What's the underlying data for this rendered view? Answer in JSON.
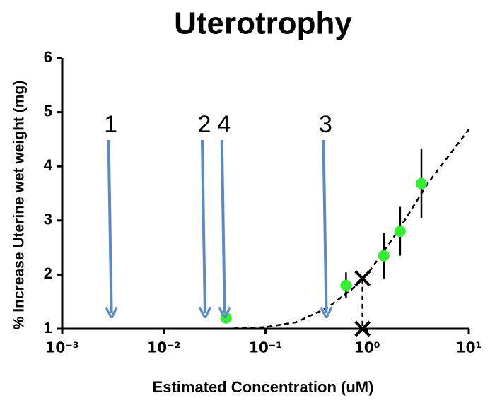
{
  "chart_data": {
    "type": "scatter",
    "title": "Uterotrophy",
    "x_label": "Estimated Concentration (uM)",
    "y_label": "% Increase Uterine wet weight (mg)",
    "xscale": "log",
    "xlim": [
      0.001,
      10
    ],
    "xticks": [
      {
        "value": 0.001,
        "label": "10⁻³"
      },
      {
        "value": 0.01,
        "label": "10⁻²"
      },
      {
        "value": 0.1,
        "label": "10⁻¹"
      },
      {
        "value": 1,
        "label": "10⁰"
      },
      {
        "value": 10,
        "label": "10¹"
      }
    ],
    "ylim": [
      1,
      6
    ],
    "yticks": [
      1,
      2,
      3,
      4,
      5,
      6
    ],
    "series": [
      {
        "type": "line",
        "style": "dashed",
        "color": "#000000",
        "x": [
          0.04,
          0.1,
          0.2,
          0.4,
          0.7,
          1,
          2,
          4,
          10
        ],
        "values": [
          1.0,
          1.03,
          1.12,
          1.38,
          1.72,
          2.0,
          2.8,
          3.7,
          4.68
        ]
      },
      {
        "type": "line",
        "style": "dashed",
        "marker": "x",
        "color": "#000000",
        "x": [
          0.9,
          0.9
        ],
        "values": [
          1.93,
          1.0
        ]
      },
      {
        "type": "scatter",
        "color": "#33ee33",
        "x": [
          0.041,
          0.62,
          1.46,
          2.11,
          3.42
        ],
        "values": [
          1.2,
          1.8,
          2.35,
          2.8,
          3.68
        ],
        "errors": [
          null,
          0.24,
          0.42,
          0.45,
          0.64
        ]
      }
    ],
    "annotations": [
      {
        "text": "1",
        "x": 0.003,
        "color": "#5b8ac6"
      },
      {
        "text": "2",
        "x": 0.025,
        "color": "#5b8ac6"
      },
      {
        "text": "4",
        "x": 0.039,
        "color": "#5b8ac6"
      },
      {
        "text": "3",
        "x": 0.39,
        "color": "#5b8ac6"
      }
    ]
  }
}
